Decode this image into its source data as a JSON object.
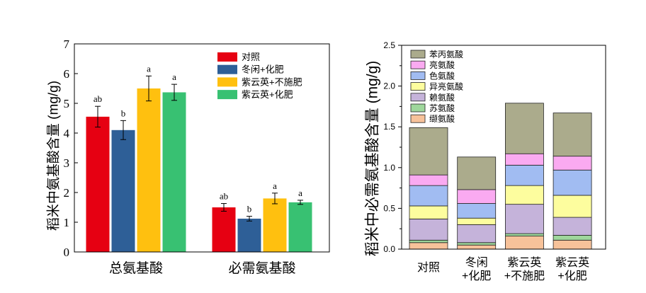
{
  "chart_data": [
    {
      "type": "bar",
      "ylabel": "稻米中氨基酸含量 (mg/g)",
      "ylim": [
        0,
        7
      ],
      "yticks": [
        "0",
        "1",
        "2",
        "3",
        "4",
        "5",
        "6",
        "7"
      ],
      "categories": [
        "总氨基酸",
        "必需氨基酸"
      ],
      "grid": false,
      "legend_position": "top-right",
      "series": [
        {
          "name": "对照",
          "color": "#E60012",
          "values": [
            4.55,
            1.5
          ],
          "errors": [
            0.35,
            0.13
          ],
          "letters": [
            "ab",
            "ab"
          ]
        },
        {
          "name": "冬闲+化肥",
          "color": "#2E5F97",
          "values": [
            4.1,
            1.12
          ],
          "errors": [
            0.32,
            0.08
          ],
          "letters": [
            "b",
            "b"
          ]
        },
        {
          "name": "紫云英+不施肥",
          "color": "#FFC00F",
          "values": [
            5.5,
            1.8
          ],
          "errors": [
            0.42,
            0.18
          ],
          "letters": [
            "a",
            "a"
          ]
        },
        {
          "name": "紫云英+化肥",
          "color": "#38C172",
          "values": [
            5.37,
            1.67
          ],
          "errors": [
            0.27,
            0.07
          ],
          "letters": [
            "a",
            "a"
          ]
        }
      ]
    },
    {
      "type": "bar",
      "stacked": true,
      "ylabel": "稻米中必需氨基酸含量 (mg/g)",
      "ylim": [
        0,
        2.5
      ],
      "yticks": [
        "0.0",
        "0.5",
        "1.0",
        "1.5",
        "2.0",
        "2.5"
      ],
      "categories": [
        [
          "对照"
        ],
        [
          "冬闲",
          "+化肥"
        ],
        [
          "紫云英",
          "+不施肥"
        ],
        [
          "紫云英",
          "+化肥"
        ]
      ],
      "grid": false,
      "legend_position": "top-left",
      "series": [
        {
          "name": "缬氨酸",
          "color": "#F7C29A",
          "values": [
            0.08,
            0.05,
            0.16,
            0.11
          ]
        },
        {
          "name": "苏氨酸",
          "color": "#9FD79C",
          "values": [
            0.03,
            0.03,
            0.03,
            0.06
          ]
        },
        {
          "name": "赖氨酸",
          "color": "#C5B3DA",
          "values": [
            0.26,
            0.22,
            0.36,
            0.22
          ]
        },
        {
          "name": "异亮氨酸",
          "color": "#FDFD9E",
          "values": [
            0.16,
            0.08,
            0.23,
            0.27
          ]
        },
        {
          "name": "色氨酸",
          "color": "#A1BCF2",
          "values": [
            0.25,
            0.18,
            0.25,
            0.31
          ]
        },
        {
          "name": "亮氨酸",
          "color": "#FAAAF1",
          "values": [
            0.13,
            0.17,
            0.14,
            0.17
          ]
        },
        {
          "name": "苯丙氨酸",
          "color": "#ABAB8C",
          "values": [
            0.58,
            0.4,
            0.62,
            0.53
          ]
        }
      ]
    }
  ]
}
